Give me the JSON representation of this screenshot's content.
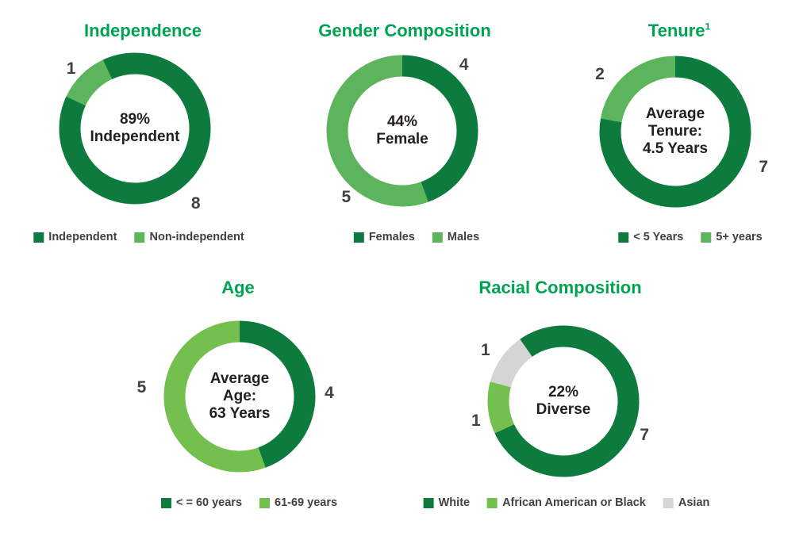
{
  "page": {
    "background": "#ffffff"
  },
  "palette": {
    "title_green": "#00A351",
    "dark_green": "#0E7B3E",
    "light_green": "#5CB45C",
    "yellow_green": "#74C04E",
    "gray": "#D4D5D4",
    "label_gray": "#414042",
    "center_black": "#231F20"
  },
  "chart_data": [
    {
      "type": "pie",
      "subtype": "donut",
      "title": "Independence",
      "title_sup": "",
      "center_label": "89% Independent",
      "center_lines": [
        "89%",
        "Independent"
      ],
      "categories": [
        "Independent",
        "Non-independent"
      ],
      "values": [
        8,
        1
      ],
      "colors": [
        "#0E7B3E",
        "#5CB45C"
      ],
      "legend_position": "bottom",
      "layout": {
        "start_angle": -25,
        "label_angles": [
          141,
          313
        ],
        "label_radii": [
          122,
          110
        ]
      }
    },
    {
      "type": "pie",
      "subtype": "donut",
      "title": "Gender Composition",
      "title_sup": "",
      "center_label": "44% Female",
      "center_lines": [
        "44%",
        "Female"
      ],
      "categories": [
        "Females",
        "Males"
      ],
      "values": [
        4,
        5
      ],
      "colors": [
        "#0E7B3E",
        "#5CB45C"
      ],
      "legend_position": "bottom",
      "layout": {
        "start_angle": 0,
        "label_angles": [
          43,
          220
        ],
        "label_radii": [
          114,
          110
        ]
      }
    },
    {
      "type": "pie",
      "subtype": "donut",
      "title": "Tenure",
      "title_sup": "1",
      "center_label": "Average Tenure: 4.5 Years",
      "center_lines": [
        "Average",
        "Tenure:",
        "4.5 Years"
      ],
      "categories": [
        "< 5 Years",
        "5+ years"
      ],
      "values": [
        7,
        2
      ],
      "colors": [
        "#0E7B3E",
        "#5CB45C"
      ],
      "legend_position": "bottom",
      "layout": {
        "start_angle": 0,
        "label_angles": [
          112,
          307
        ],
        "label_radii": [
          120,
          119
        ]
      }
    },
    {
      "type": "pie",
      "subtype": "donut",
      "title": "Age",
      "title_sup": "",
      "center_label": "Average Age: 63 Years",
      "center_lines": [
        "Average",
        "Age:",
        "63 Years"
      ],
      "categories": [
        "< = 60 years",
        "61-69 years"
      ],
      "values": [
        4,
        5
      ],
      "colors": [
        "#0E7B3E",
        "#74C04E"
      ],
      "legend_position": "bottom",
      "layout": {
        "start_angle": 0,
        "label_angles": [
          88,
          275
        ],
        "label_radii": [
          113,
          124
        ]
      }
    },
    {
      "type": "pie",
      "subtype": "donut",
      "title": "Racial Composition",
      "title_sup": "",
      "center_label": "22% Diverse",
      "center_lines": [
        "22%",
        "Diverse"
      ],
      "categories": [
        "White",
        "African American or Black",
        "Asian"
      ],
      "values": [
        7,
        1,
        1
      ],
      "colors": [
        "#0E7B3E",
        "#74C04E",
        "#D4D5D4"
      ],
      "legend_position": "bottom",
      "layout": {
        "start_angle": -35,
        "label_angles": [
          113,
          257,
          303
        ],
        "label_radii": [
          111,
          113,
          117
        ]
      }
    }
  ]
}
